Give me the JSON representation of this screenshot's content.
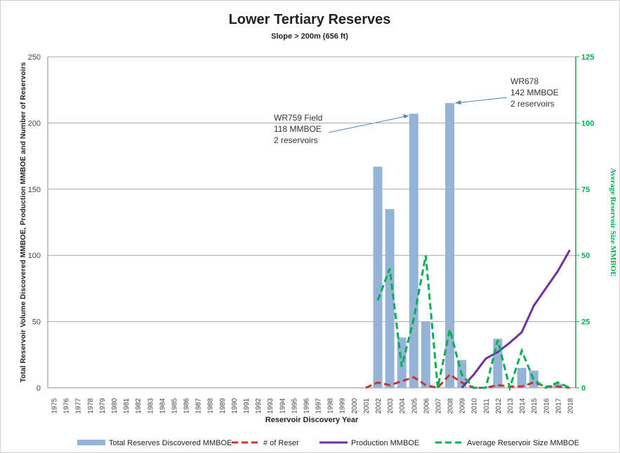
{
  "chart_data": {
    "type": "bar",
    "title": "Lower Tertiary Reserves",
    "subtitle": "Slope > 200m (656 ft)",
    "x_label": "Reservoir Discovery Year",
    "y_label": "Total Reservoir Volume Discovered MMBOE, Production MMBOE and Number of Reservoirs",
    "y2_label": "Average Reservoir Size MMBOE",
    "categories": [
      "1975",
      "1976",
      "1977",
      "1978",
      "1979",
      "1980",
      "1981",
      "1982",
      "1983",
      "1984",
      "1985",
      "1986",
      "1987",
      "1988",
      "1989",
      "1990",
      "1991",
      "1992",
      "1993",
      "1994",
      "1995",
      "1996",
      "1997",
      "1998",
      "1999",
      "2000",
      "2001",
      "2002",
      "2003",
      "2004",
      "2005",
      "2006",
      "2007",
      "2008",
      "2009",
      "2010",
      "2011",
      "2012",
      "2013",
      "2014",
      "2015",
      "2016",
      "2017",
      "2018"
    ],
    "ylim": [
      0,
      250
    ],
    "yticks": [
      0,
      50,
      100,
      150,
      200,
      250
    ],
    "y2lim": [
      0,
      125
    ],
    "y2ticks": [
      0,
      25,
      50,
      75,
      100,
      125
    ],
    "grid": true,
    "series": [
      {
        "name": "Total Reserves Discovered MMBOE",
        "type": "bar",
        "color": "#95b3d7",
        "values": [
          null,
          null,
          null,
          null,
          null,
          null,
          null,
          null,
          null,
          null,
          null,
          null,
          null,
          null,
          null,
          null,
          null,
          null,
          null,
          null,
          null,
          null,
          null,
          null,
          null,
          null,
          null,
          167,
          135,
          38,
          207,
          50,
          0,
          215,
          21,
          0,
          0,
          37,
          0,
          15,
          13,
          0,
          3,
          0
        ]
      },
      {
        "name": "# of Reser",
        "type": "line",
        "dash": true,
        "color": "#c0392b",
        "values": [
          null,
          null,
          null,
          null,
          null,
          null,
          null,
          null,
          null,
          null,
          null,
          null,
          null,
          null,
          null,
          null,
          null,
          null,
          null,
          null,
          null,
          null,
          null,
          null,
          null,
          null,
          0,
          4,
          2,
          5,
          8,
          2,
          0,
          10,
          4,
          0,
          0,
          2,
          1,
          1,
          4,
          1,
          1,
          0
        ]
      },
      {
        "name": "Production MMBOE",
        "type": "line",
        "dash": false,
        "color": "#7030a0",
        "values": [
          null,
          null,
          null,
          null,
          null,
          null,
          null,
          null,
          null,
          null,
          null,
          null,
          null,
          null,
          null,
          null,
          null,
          null,
          null,
          null,
          null,
          null,
          null,
          null,
          null,
          null,
          null,
          null,
          null,
          null,
          null,
          null,
          null,
          null,
          0,
          10,
          22,
          27,
          34,
          42,
          62,
          75,
          88,
          104
        ]
      },
      {
        "name": "Average Reservoir Size MMBOE",
        "type": "line",
        "dash": true,
        "axis": "y2",
        "color": "#00b050",
        "values": [
          null,
          null,
          null,
          null,
          null,
          null,
          null,
          null,
          null,
          null,
          null,
          null,
          null,
          null,
          null,
          null,
          null,
          null,
          null,
          null,
          null,
          null,
          null,
          null,
          null,
          null,
          null,
          33,
          45,
          8,
          26,
          50,
          0,
          22,
          5,
          0,
          0,
          18,
          0,
          14,
          3,
          0,
          2,
          0
        ]
      }
    ],
    "annotations": [
      {
        "lines": [
          "WR759 Field",
          "118 MMBOE",
          "2 reservoirs"
        ]
      },
      {
        "lines": [
          "WR678",
          "142 MMBOE",
          "2 reservoirs"
        ]
      }
    ]
  }
}
